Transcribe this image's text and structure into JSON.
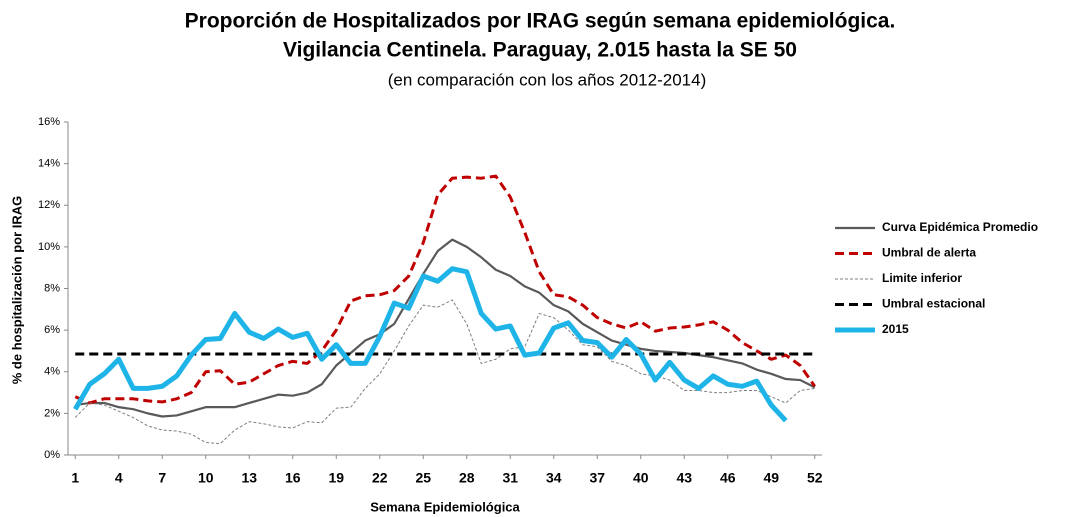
{
  "chart_data": {
    "type": "line",
    "title": [
      "Proporción de Hospitalizados por IRAG según semana epidemiológica.",
      "Vigilancia Centinela. Paraguay, 2.015 hasta la SE 50"
    ],
    "subtitle": "(en comparación con los años 2012-2014)",
    "x_label": "Semana Epidemiológica",
    "y_label": "% de hospitalización por IRAG",
    "x": [
      1,
      2,
      3,
      4,
      5,
      6,
      7,
      8,
      9,
      10,
      11,
      12,
      13,
      14,
      15,
      16,
      17,
      18,
      19,
      20,
      21,
      22,
      23,
      24,
      25,
      26,
      27,
      28,
      29,
      30,
      31,
      32,
      33,
      34,
      35,
      36,
      37,
      38,
      39,
      40,
      41,
      42,
      43,
      44,
      45,
      46,
      47,
      48,
      49,
      50,
      51,
      52
    ],
    "xlim": [
      0.5,
      52.5
    ],
    "xticks": [
      1,
      4,
      7,
      10,
      13,
      16,
      19,
      22,
      25,
      28,
      31,
      34,
      37,
      40,
      43,
      46,
      49,
      52
    ],
    "ylim": [
      0,
      16
    ],
    "yticks": [
      {
        "value": 0,
        "label": "0%"
      },
      {
        "value": 2,
        "label": "2%"
      },
      {
        "value": 4,
        "label": "4%"
      },
      {
        "value": 6,
        "label": "6%"
      },
      {
        "value": 8,
        "label": "8%"
      },
      {
        "value": 10,
        "label": "10%"
      },
      {
        "value": 12,
        "label": "12%"
      },
      {
        "value": 14,
        "label": "14%"
      },
      {
        "value": 16,
        "label": "16%"
      }
    ],
    "grid": false,
    "legend": "right",
    "series": [
      {
        "name": "Curva Epidémica Promedio",
        "color": "#595959",
        "style": "solid",
        "values": [
          2.4,
          2.5,
          2.5,
          2.3,
          2.2,
          2.0,
          1.85,
          1.9,
          2.1,
          2.3,
          2.3,
          2.3,
          2.5,
          2.7,
          2.9,
          2.85,
          3.0,
          3.4,
          4.3,
          4.9,
          5.5,
          5.8,
          6.3,
          7.5,
          8.7,
          9.8,
          10.35,
          10.0,
          9.5,
          8.9,
          8.6,
          8.1,
          7.8,
          7.2,
          6.9,
          6.3,
          5.9,
          5.5,
          5.3,
          5.1,
          5.0,
          4.95,
          4.9,
          4.8,
          4.7,
          4.55,
          4.4,
          4.1,
          3.9,
          3.65,
          3.6,
          3.25
        ]
      },
      {
        "name": "Umbral de alerta",
        "color": "#c00000",
        "style": "dashed",
        "values": [
          2.8,
          2.5,
          2.7,
          2.7,
          2.7,
          2.6,
          2.55,
          2.7,
          3.0,
          4.0,
          4.05,
          3.4,
          3.5,
          3.9,
          4.3,
          4.5,
          4.4,
          5.0,
          6.0,
          7.4,
          7.65,
          7.7,
          7.9,
          8.6,
          10.2,
          12.5,
          13.3,
          13.35,
          13.3,
          13.4,
          12.4,
          10.7,
          8.8,
          7.7,
          7.6,
          7.2,
          6.6,
          6.3,
          6.1,
          6.4,
          5.95,
          6.1,
          6.15,
          6.25,
          6.4,
          6.0,
          5.4,
          5.0,
          4.6,
          4.8,
          4.3,
          3.3
        ]
      },
      {
        "name": "Limite inferior",
        "color": "#7f7f7f",
        "style": "dotted",
        "values": [
          1.8,
          2.5,
          2.4,
          2.1,
          1.8,
          1.4,
          1.2,
          1.15,
          1.0,
          0.6,
          0.55,
          1.2,
          1.6,
          1.5,
          1.35,
          1.3,
          1.6,
          1.55,
          2.25,
          2.3,
          3.2,
          3.9,
          5.0,
          6.2,
          7.2,
          7.1,
          7.45,
          6.3,
          4.4,
          4.6,
          5.1,
          5.2,
          6.8,
          6.6,
          6.0,
          5.3,
          5.2,
          4.5,
          4.3,
          3.9,
          3.8,
          3.6,
          3.1,
          3.1,
          3.0,
          3.0,
          3.1,
          3.1,
          2.8,
          2.5,
          3.1,
          3.2
        ]
      },
      {
        "name": "Umbral estacional",
        "color": "#000000",
        "style": "dashed",
        "values": [
          4.85,
          4.85,
          4.85,
          4.85,
          4.85,
          4.85,
          4.85,
          4.85,
          4.85,
          4.85,
          4.85,
          4.85,
          4.85,
          4.85,
          4.85,
          4.85,
          4.85,
          4.85,
          4.85,
          4.85,
          4.85,
          4.85,
          4.85,
          4.85,
          4.85,
          4.85,
          4.85,
          4.85,
          4.85,
          4.85,
          4.85,
          4.85,
          4.85,
          4.85,
          4.85,
          4.85,
          4.85,
          4.85,
          4.85,
          4.85,
          4.85,
          4.85,
          4.85,
          4.85,
          4.85,
          4.85,
          4.85,
          4.85,
          4.85,
          4.85,
          4.85,
          4.85
        ]
      },
      {
        "name": "2015",
        "color": "#1fb4e8",
        "style": "bold",
        "values": [
          2.2,
          3.4,
          3.9,
          4.6,
          3.2,
          3.2,
          3.3,
          3.8,
          4.8,
          5.55,
          5.6,
          6.8,
          5.9,
          5.6,
          6.05,
          5.65,
          5.85,
          4.6,
          5.3,
          4.4,
          4.4,
          5.7,
          7.3,
          7.05,
          8.6,
          8.35,
          8.95,
          8.8,
          6.8,
          6.05,
          6.2,
          4.8,
          4.9,
          6.1,
          6.35,
          5.5,
          5.4,
          4.7,
          5.55,
          4.85,
          3.6,
          4.45,
          3.6,
          3.2,
          3.8,
          3.4,
          3.3,
          3.55,
          2.4,
          1.65,
          null,
          null
        ]
      }
    ]
  }
}
